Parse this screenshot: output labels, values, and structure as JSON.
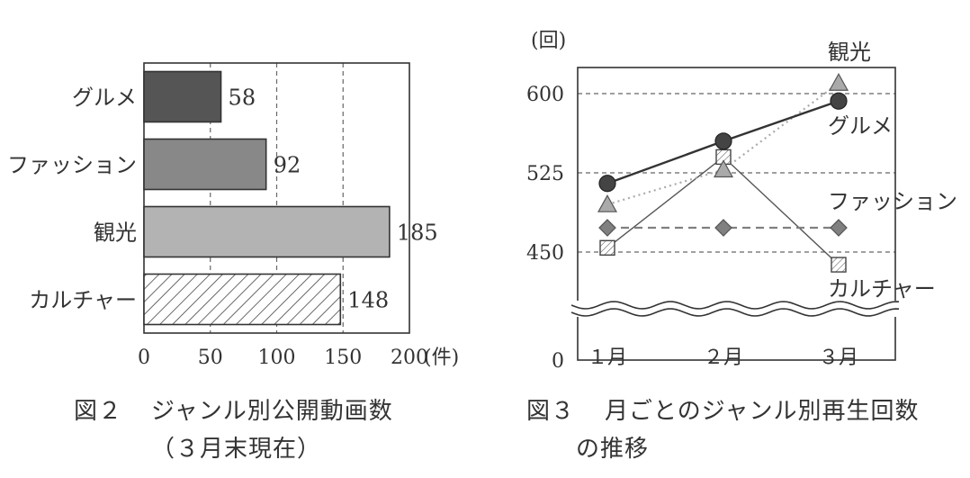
{
  "chart_data": [
    {
      "type": "bar",
      "orientation": "horizontal",
      "categories": [
        "グルメ",
        "ファッション",
        "観光",
        "カルチャー"
      ],
      "values": [
        58,
        92,
        185,
        148
      ],
      "xlim": [
        0,
        200
      ],
      "x_ticks": [
        "0",
        "50",
        "100",
        "150",
        "200"
      ],
      "x_unit": "(件)",
      "grid": "vertical dashed",
      "fills": [
        "#555555",
        "#888888",
        "#b3b3b3",
        "hatch"
      ],
      "caption_num": "図２",
      "caption": "ジャンル別公開動画数",
      "caption2": "（３月末現在）"
    },
    {
      "type": "line",
      "x": [
        "１月",
        "２月",
        "３月"
      ],
      "y_unit": "(回)",
      "y_ticks": [
        "0",
        "450",
        "525",
        "600"
      ],
      "axis_break": true,
      "grid": "horizontal dashed",
      "series": [
        {
          "name": "観光",
          "values": [
            495,
            528,
            610
          ],
          "marker": "triangle",
          "line": "dotted",
          "color": "#aaaaaa"
        },
        {
          "name": "グルメ",
          "values": [
            515,
            555,
            593
          ],
          "marker": "circle",
          "line": "solid",
          "color": "#444444"
        },
        {
          "name": "ファッション",
          "values": [
            473,
            473,
            473
          ],
          "marker": "diamond",
          "line": "dashed",
          "color": "#808080"
        },
        {
          "name": "カルチャー",
          "values": [
            454,
            540,
            438
          ],
          "marker": "hatched-square",
          "line": "solid-thin",
          "color": "#555555"
        }
      ],
      "caption_num": "図３",
      "caption": "月ごとのジャンル別再生回数",
      "caption2": "の推移"
    }
  ]
}
